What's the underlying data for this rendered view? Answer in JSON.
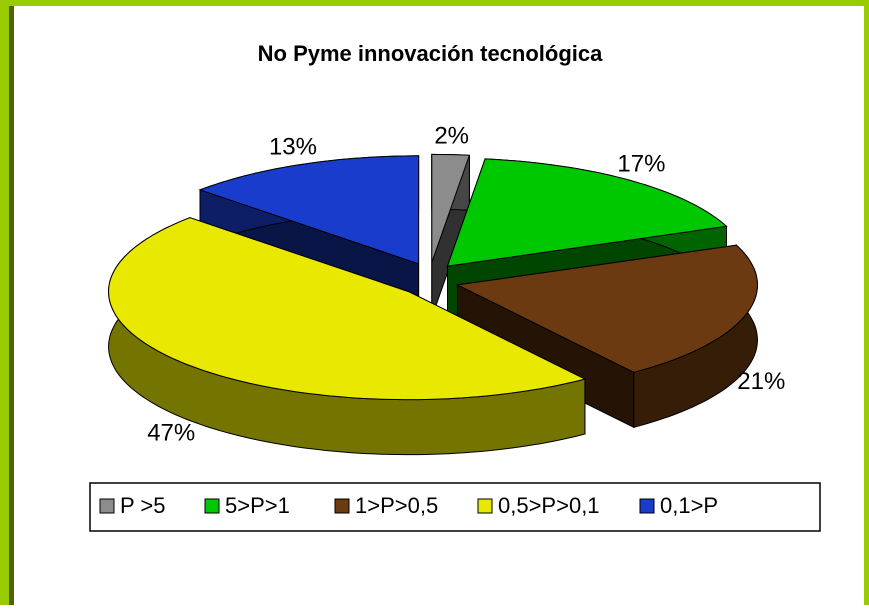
{
  "chart_data": {
    "type": "pie",
    "title": "No Pyme innovación tecnológica",
    "categories": [
      "P >5",
      "5>P>1",
      "1>P>0,5",
      "0,5>P>0,1",
      "0,1>P"
    ],
    "values": [
      2,
      17,
      21,
      47,
      13
    ],
    "value_labels": [
      "2%",
      "17%",
      "21%",
      "47%",
      "13%"
    ],
    "colors": [
      "#8c8c8c",
      "#00c800",
      "#6b3a10",
      "#e8e800",
      "#1a3ccc"
    ],
    "legend": "bottom"
  }
}
